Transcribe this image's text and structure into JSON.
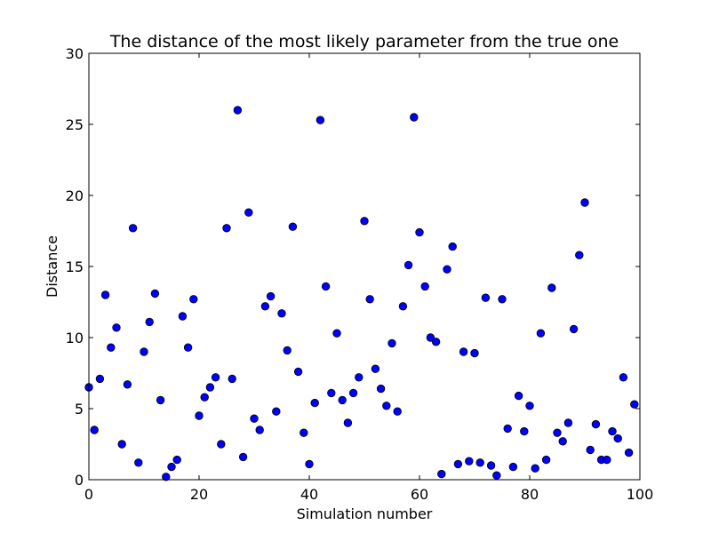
{
  "chart_data": {
    "type": "scatter",
    "title": "The distance of the most likely parameter from the true one",
    "xlabel": "Simulation number",
    "ylabel": "Distance",
    "xlim": [
      0,
      100
    ],
    "ylim": [
      0,
      30
    ],
    "xticks": [
      "0",
      "20",
      "40",
      "60",
      "80",
      "100"
    ],
    "yticks": [
      "0",
      "5",
      "10",
      "15",
      "20",
      "25",
      "30"
    ],
    "grid": false,
    "marker_color": "#0000ff",
    "marker_edge": "#000000",
    "x": [
      0,
      1,
      2,
      3,
      4,
      5,
      6,
      7,
      8,
      9,
      10,
      11,
      12,
      13,
      14,
      15,
      16,
      17,
      18,
      19,
      20,
      21,
      22,
      23,
      24,
      25,
      26,
      27,
      28,
      29,
      30,
      31,
      32,
      33,
      34,
      35,
      36,
      37,
      38,
      39,
      40,
      41,
      42,
      43,
      44,
      45,
      46,
      47,
      48,
      49,
      50,
      51,
      52,
      53,
      54,
      55,
      56,
      57,
      58,
      59,
      60,
      61,
      62,
      63,
      64,
      65,
      66,
      67,
      68,
      69,
      70,
      71,
      72,
      73,
      74,
      75,
      76,
      77,
      78,
      79,
      80,
      81,
      82,
      83,
      84,
      85,
      86,
      87,
      88,
      89,
      90,
      91,
      92,
      93,
      94,
      95,
      96,
      97,
      98,
      99
    ],
    "y": [
      6.5,
      3.5,
      7.1,
      13.0,
      9.3,
      10.7,
      2.5,
      6.7,
      17.7,
      1.2,
      9.0,
      11.1,
      13.1,
      5.6,
      0.2,
      0.9,
      1.4,
      11.5,
      9.3,
      12.7,
      4.5,
      5.8,
      6.5,
      7.2,
      2.5,
      17.7,
      7.1,
      26.0,
      1.6,
      18.8,
      4.3,
      3.5,
      12.2,
      12.9,
      4.8,
      11.7,
      9.1,
      17.8,
      7.6,
      3.3,
      1.1,
      5.4,
      25.3,
      13.6,
      6.1,
      10.3,
      5.6,
      4.0,
      6.1,
      7.2,
      18.2,
      12.7,
      7.8,
      6.4,
      5.2,
      9.6,
      4.8,
      12.2,
      15.1,
      25.5,
      17.4,
      13.6,
      10.0,
      9.7,
      0.4,
      14.8,
      16.4,
      1.1,
      9.0,
      1.3,
      8.9,
      1.2,
      12.8,
      1.0,
      0.3,
      12.7,
      3.6,
      0.9,
      5.9,
      3.4,
      5.2,
      0.8,
      10.3,
      1.4,
      13.5,
      3.3,
      2.7,
      4.0,
      10.6,
      15.8,
      19.5,
      2.1,
      3.9,
      1.4,
      1.4,
      3.4,
      2.9,
      7.2,
      1.9,
      5.3
    ]
  }
}
